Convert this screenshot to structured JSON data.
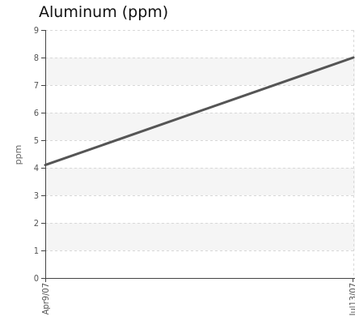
{
  "chart_data": {
    "type": "line",
    "title": "Aluminum (ppm)",
    "xlabel": "",
    "ylabel": "ppm",
    "ylim": [
      0,
      9
    ],
    "yticks": [
      0,
      1,
      2,
      3,
      4,
      5,
      6,
      7,
      8,
      9
    ],
    "x": [
      "Apr9/07",
      "Jul13/07"
    ],
    "series": [
      {
        "values": [
          4.1,
          8.0
        ],
        "color": "#555555"
      }
    ],
    "grid": true,
    "band_color": "#f5f5f5",
    "grid_color": "#d8d8d8"
  }
}
